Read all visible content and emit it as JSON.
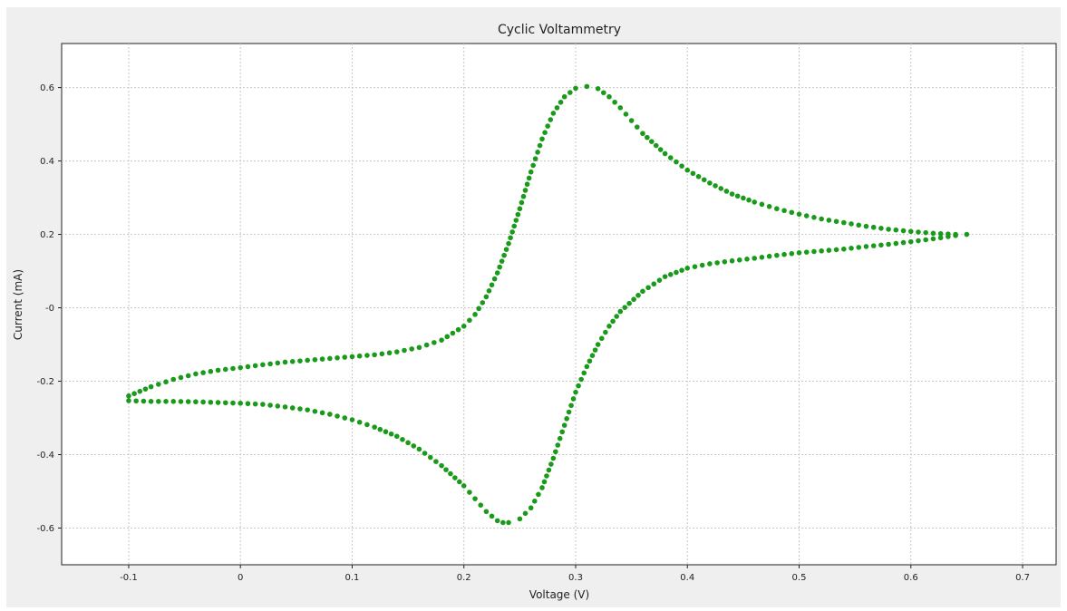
{
  "chart_data": {
    "type": "scatter",
    "title": "Cyclic Voltammetry",
    "xlabel": "Voltage (V)",
    "ylabel": "Current (mA)",
    "xlim": [
      -0.16,
      0.73
    ],
    "ylim": [
      -0.7,
      0.72
    ],
    "x_ticks": [
      -0.1,
      0,
      0.1,
      0.2,
      0.3,
      0.4,
      0.5,
      0.6,
      0.7
    ],
    "x_tick_labels": [
      "-0.1",
      "0",
      "0.1",
      "0.2",
      "0.3",
      "0.4",
      "0.5",
      "0.6",
      "0.7"
    ],
    "y_ticks": [
      0.6,
      0.4,
      0.2,
      0,
      -0.2,
      -0.4,
      -0.6
    ],
    "y_tick_labels": [
      "0.6",
      "0.4",
      "0.2",
      "-0",
      "-0.2",
      "-0.4",
      "-0.6"
    ],
    "grid": true,
    "marker_color": "#1a9a1a",
    "series": [
      {
        "x": [
          -0.1,
          -0.08,
          -0.06,
          -0.04,
          -0.02,
          0.0,
          0.02,
          0.04,
          0.06,
          0.08,
          0.1,
          0.12,
          0.14,
          0.16,
          0.18,
          0.2,
          0.21,
          0.22,
          0.23,
          0.24,
          0.25,
          0.26,
          0.27,
          0.28,
          0.29,
          0.3,
          0.31,
          0.32,
          0.33,
          0.34,
          0.35,
          0.36,
          0.38,
          0.4,
          0.42,
          0.44,
          0.46,
          0.48,
          0.5,
          0.52,
          0.54,
          0.56,
          0.58,
          0.6,
          0.62,
          0.64,
          0.65,
          0.64,
          0.62,
          0.6,
          0.58,
          0.56,
          0.54,
          0.52,
          0.5,
          0.48,
          0.46,
          0.44,
          0.42,
          0.4,
          0.38,
          0.36,
          0.34,
          0.33,
          0.32,
          0.31,
          0.3,
          0.29,
          0.28,
          0.27,
          0.26,
          0.25,
          0.24,
          0.235,
          0.23,
          0.22,
          0.21,
          0.2,
          0.18,
          0.16,
          0.14,
          0.12,
          0.1,
          0.08,
          0.06,
          0.04,
          0.02,
          0.0,
          -0.02,
          -0.04,
          -0.06,
          -0.08,
          -0.1
        ],
        "y": [
          -0.24,
          -0.215,
          -0.195,
          -0.18,
          -0.17,
          -0.163,
          -0.155,
          -0.148,
          -0.143,
          -0.138,
          -0.133,
          -0.128,
          -0.12,
          -0.108,
          -0.088,
          -0.05,
          -0.018,
          0.03,
          0.095,
          0.175,
          0.27,
          0.37,
          0.46,
          0.53,
          0.575,
          0.598,
          0.603,
          0.597,
          0.575,
          0.545,
          0.51,
          0.475,
          0.42,
          0.375,
          0.34,
          0.31,
          0.288,
          0.27,
          0.255,
          0.242,
          0.232,
          0.222,
          0.214,
          0.208,
          0.203,
          0.2,
          0.2,
          0.197,
          0.188,
          0.18,
          0.173,
          0.167,
          0.16,
          0.155,
          0.15,
          0.143,
          0.135,
          0.128,
          0.12,
          0.108,
          0.085,
          0.045,
          -0.01,
          -0.05,
          -0.1,
          -0.16,
          -0.23,
          -0.32,
          -0.41,
          -0.49,
          -0.545,
          -0.575,
          -0.585,
          -0.585,
          -0.58,
          -0.555,
          -0.52,
          -0.485,
          -0.43,
          -0.385,
          -0.35,
          -0.325,
          -0.305,
          -0.29,
          -0.278,
          -0.27,
          -0.263,
          -0.26,
          -0.258,
          -0.256,
          -0.255,
          -0.255,
          -0.253
        ]
      }
    ]
  }
}
